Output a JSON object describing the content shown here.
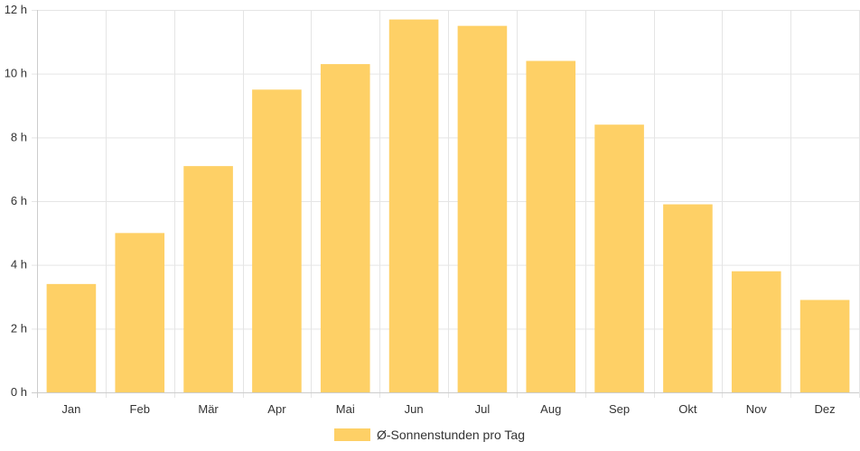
{
  "chart_data": {
    "type": "bar",
    "categories": [
      "Jan",
      "Feb",
      "Mär",
      "Apr",
      "Mai",
      "Jun",
      "Jul",
      "Aug",
      "Sep",
      "Okt",
      "Nov",
      "Dez"
    ],
    "series": [
      {
        "name": "Ø-Sonnenstunden pro Tag",
        "values": [
          3.4,
          5.0,
          7.1,
          9.5,
          10.3,
          11.7,
          11.5,
          10.4,
          8.4,
          5.9,
          3.8,
          2.9
        ],
        "color": "#fed066"
      }
    ],
    "y_ticks": [
      "0 h",
      "2 h",
      "4 h",
      "6 h",
      "8 h",
      "10 h",
      "12 h"
    ],
    "ylim": [
      0,
      12
    ],
    "grid": true,
    "legend_position": "bottom"
  }
}
